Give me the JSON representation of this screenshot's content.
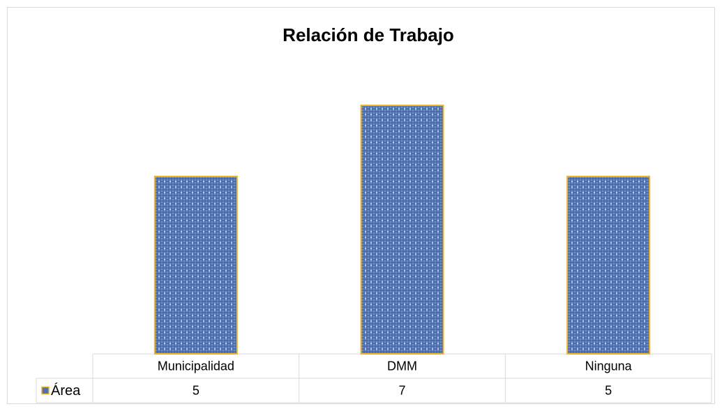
{
  "chart_data": {
    "type": "bar",
    "title": "Relación de Trabajo",
    "categories": [
      "Municipalidad",
      "DMM",
      "Ninguna"
    ],
    "series": [
      {
        "name": "Área",
        "color": "#4f73b3",
        "values": [
          5,
          7,
          5
        ]
      }
    ],
    "ylim": [
      0,
      7
    ]
  }
}
